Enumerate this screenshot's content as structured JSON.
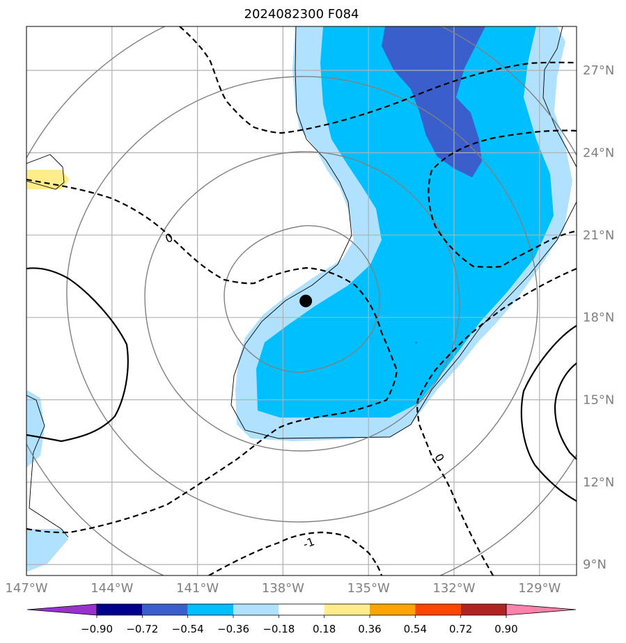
{
  "chart_data": {
    "type": "map",
    "title": "2024082300 F084",
    "projection": "map with lat/lon gridlines",
    "lon_range": [
      -147.0,
      -127.7
    ],
    "lat_range": [
      8.6,
      28.6
    ],
    "x_ticks": [
      {
        "value": -147,
        "label": "147°W"
      },
      {
        "value": -144,
        "label": "144°W"
      },
      {
        "value": -141,
        "label": "141°W"
      },
      {
        "value": -138,
        "label": "138°W"
      },
      {
        "value": -135,
        "label": "135°W"
      },
      {
        "value": -132,
        "label": "132°W"
      },
      {
        "value": -129,
        "label": "129°W"
      }
    ],
    "y_ticks": [
      {
        "value": 9,
        "label": "9°N"
      },
      {
        "value": 12,
        "label": "12°N"
      },
      {
        "value": 15,
        "label": "15°N"
      },
      {
        "value": 18,
        "label": "18°N"
      },
      {
        "value": 21,
        "label": "21°N"
      },
      {
        "value": 24,
        "label": "24°N"
      },
      {
        "value": 27,
        "label": "27°N"
      }
    ],
    "y_tick_side": "right",
    "grid": true,
    "colorbar": {
      "orientation": "horizontal",
      "placement": "bottom",
      "extend": "both",
      "ticks": [
        "−0.90",
        "−0.72",
        "−0.54",
        "−0.36",
        "−0.18",
        "0.18",
        "0.36",
        "0.54",
        "0.72",
        "0.90"
      ],
      "colors": [
        "#9932cc",
        "#00008b",
        "#3a5fcd",
        "#00bfff",
        "#b0e2ff",
        "#ffffff",
        "#ffec8b",
        "#ffa500",
        "#ff4500",
        "#b22222",
        "#ff82ab"
      ]
    },
    "center_marker": {
      "lon": -137.2,
      "lat": 18.6,
      "color": "#000000"
    },
    "contour_labels": [
      {
        "text": "0",
        "lon": -142.0,
        "lat": 20.9
      },
      {
        "text": "0",
        "lon": -132.5,
        "lat": 12.9
      },
      {
        "text": "-1",
        "lon": -137.1,
        "lat": 9.8
      }
    ],
    "field_colors": {
      "light_blue": "#b0e2ff",
      "blue": "#00bfff",
      "royal_blue": "#3a5fcd",
      "yellow": "#ffec8b"
    }
  }
}
